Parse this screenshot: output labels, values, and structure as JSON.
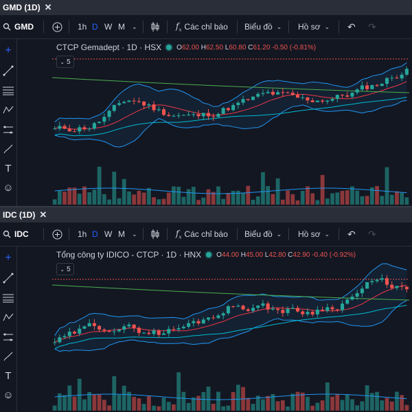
{
  "panels": [
    {
      "tab_label": "GMD (1D)",
      "symbol": "GMD",
      "intervals": [
        "1h",
        "D",
        "W",
        "M"
      ],
      "active_interval": "D",
      "indicators_label": "Các chỉ báo",
      "chart_type_label": "Biểu đồ",
      "profile_label": "Hồ sơ",
      "legend_name": "CTCP Gemadept · 1D · HSX",
      "ohlc": {
        "o": "62.00",
        "h": "62.50",
        "l": "60.80",
        "c": "61.20",
        "chg": "-0.50 (-0.81%)"
      },
      "collapse_count": "5"
    },
    {
      "tab_label": "IDC (1D)",
      "symbol": "IDC",
      "intervals": [
        "1h",
        "D",
        "W",
        "M"
      ],
      "active_interval": "D",
      "indicators_label": "Các chỉ báo",
      "chart_type_label": "Biểu đồ",
      "profile_label": "Hồ sơ",
      "legend_name": "Tổng công ty IDICO - CTCP · 1D · HNX",
      "ohlc": {
        "o": "44.00",
        "h": "45.00",
        "l": "42.80",
        "c": "42.90",
        "chg": "-0.40 (-0.92%)"
      },
      "collapse_count": "5"
    }
  ],
  "colors": {
    "up": "#26a69a",
    "down": "#ef5350",
    "bb": "#2196f3",
    "ma_long": "#4caf50",
    "ma_short": "#f23645",
    "ma_mid": "#00bcd4",
    "vol_ma": "#2196f3"
  }
}
